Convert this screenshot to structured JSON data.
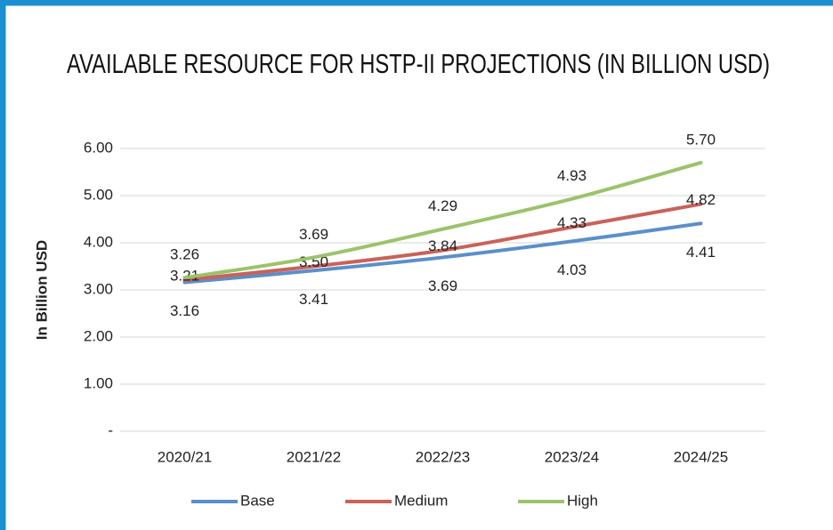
{
  "chart_data": {
    "type": "line",
    "title": "AVAILABLE RESOURCE FOR HSTP-II PROJECTIONS (IN BILLION USD)",
    "y_axis_label": "In Billion USD",
    "categories": [
      "2020/21",
      "2021/22",
      "2022/23",
      "2023/24",
      "2024/25"
    ],
    "series": [
      {
        "name": "Base",
        "color": "#5b8fc9",
        "values": [
          3.16,
          3.41,
          3.69,
          4.03,
          4.41
        ],
        "value_labels": [
          "3.16",
          "3.41",
          "3.69",
          "4.03",
          "4.41"
        ]
      },
      {
        "name": "Medium",
        "color": "#c9625a",
        "values": [
          3.21,
          3.5,
          3.84,
          4.33,
          4.82
        ],
        "value_labels": [
          "3.21",
          "3.50",
          "3.84",
          "4.33",
          "4.82"
        ]
      },
      {
        "name": "High",
        "color": "#9bc36b",
        "values": [
          3.26,
          3.69,
          4.29,
          4.93,
          5.7
        ],
        "value_labels": [
          "3.26",
          "3.69",
          "4.29",
          "4.93",
          "5.70"
        ]
      }
    ],
    "ylim": [
      0,
      6
    ],
    "yticks": [
      {
        "value": 0,
        "label": "-"
      },
      {
        "value": 1,
        "label": "1.00"
      },
      {
        "value": 2,
        "label": "2.00"
      },
      {
        "value": 3,
        "label": "3.00"
      },
      {
        "value": 4,
        "label": "4.00"
      },
      {
        "value": 5,
        "label": "5.00"
      },
      {
        "value": 6,
        "label": "6.00"
      }
    ],
    "grid": true,
    "legend": "bottom"
  }
}
